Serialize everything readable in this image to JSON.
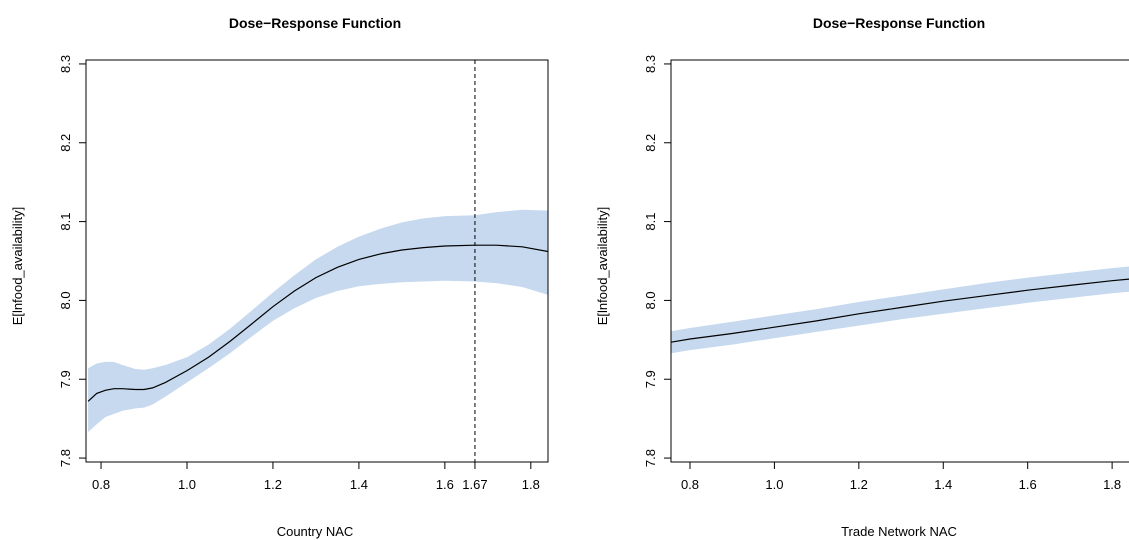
{
  "chart_data": [
    {
      "type": "line",
      "title": "Dose−Response Function",
      "xlabel": "Country NAC",
      "ylabel": "E[lnfood_availability]",
      "xlim": [
        0.765,
        1.84
      ],
      "ylim": [
        7.795,
        8.305
      ],
      "xticks": [
        0.8,
        1.0,
        1.2,
        1.4,
        1.6,
        1.67,
        1.8
      ],
      "xtick_labels": [
        "0.8",
        "1.0",
        "1.2",
        "1.4",
        "1.6",
        "1.67",
        "1.8"
      ],
      "yticks": [
        7.8,
        7.9,
        8.0,
        8.1,
        8.2,
        8.3
      ],
      "ytick_labels": [
        "7.8",
        "7.9",
        "8.0",
        "8.1",
        "8.2",
        "8.3"
      ],
      "vline": {
        "x": 1.67,
        "style": "dashed"
      },
      "series": [
        {
          "x": [
            0.77,
            0.79,
            0.81,
            0.83,
            0.85,
            0.88,
            0.9,
            0.92,
            0.95,
            1.0,
            1.05,
            1.1,
            1.15,
            1.2,
            1.25,
            1.3,
            1.35,
            1.4,
            1.45,
            1.5,
            1.55,
            1.6,
            1.67,
            1.72,
            1.78,
            1.84
          ],
          "y": [
            7.872,
            7.882,
            7.886,
            7.888,
            7.888,
            7.887,
            7.887,
            7.889,
            7.896,
            7.911,
            7.928,
            7.948,
            7.97,
            7.992,
            8.012,
            8.029,
            8.042,
            8.052,
            8.059,
            8.064,
            8.067,
            8.069,
            8.07,
            8.07,
            8.068,
            8.062
          ],
          "lower": [
            7.833,
            7.843,
            7.852,
            7.856,
            7.86,
            7.863,
            7.864,
            7.868,
            7.878,
            7.896,
            7.914,
            7.933,
            7.954,
            7.974,
            7.99,
            8.003,
            8.012,
            8.018,
            8.021,
            8.023,
            8.024,
            8.025,
            8.024,
            8.022,
            8.017,
            8.007
          ],
          "upper": [
            7.914,
            7.92,
            7.922,
            7.922,
            7.918,
            7.913,
            7.912,
            7.914,
            7.918,
            7.928,
            7.944,
            7.964,
            7.987,
            8.01,
            8.032,
            8.052,
            8.068,
            8.081,
            8.091,
            8.099,
            8.104,
            8.107,
            8.108,
            8.112,
            8.115,
            8.114
          ]
        }
      ],
      "colors": {
        "band": "#c6d9ee",
        "line": "#000000"
      }
    },
    {
      "type": "line",
      "title": "Dose−Response Function",
      "xlabel": "Trade Network NAC",
      "ylabel": "E[lnfood_availability]",
      "xlim": [
        0.755,
        1.84
      ],
      "ylim": [
        7.795,
        8.305
      ],
      "xticks": [
        0.8,
        1.0,
        1.2,
        1.4,
        1.6,
        1.8
      ],
      "xtick_labels": [
        "0.8",
        "1.0",
        "1.2",
        "1.4",
        "1.6",
        "1.8"
      ],
      "yticks": [
        7.8,
        7.9,
        8.0,
        8.1,
        8.2,
        8.3
      ],
      "ytick_labels": [
        "7.8",
        "7.9",
        "8.0",
        "8.1",
        "8.2",
        "8.3"
      ],
      "series": [
        {
          "x": [
            0.755,
            0.8,
            0.9,
            1.0,
            1.1,
            1.2,
            1.3,
            1.4,
            1.5,
            1.6,
            1.7,
            1.8,
            1.84
          ],
          "y": [
            7.947,
            7.951,
            7.958,
            7.966,
            7.974,
            7.983,
            7.991,
            7.999,
            8.006,
            8.013,
            8.019,
            8.025,
            8.027
          ],
          "lower": [
            7.933,
            7.937,
            7.944,
            7.952,
            7.96,
            7.968,
            7.976,
            7.983,
            7.99,
            7.997,
            8.003,
            8.009,
            8.011
          ],
          "upper": [
            7.961,
            7.965,
            7.973,
            7.981,
            7.989,
            7.998,
            8.006,
            8.014,
            8.022,
            8.029,
            8.035,
            8.041,
            8.043
          ]
        }
      ],
      "colors": {
        "band": "#c6d9ee",
        "line": "#000000"
      }
    }
  ]
}
